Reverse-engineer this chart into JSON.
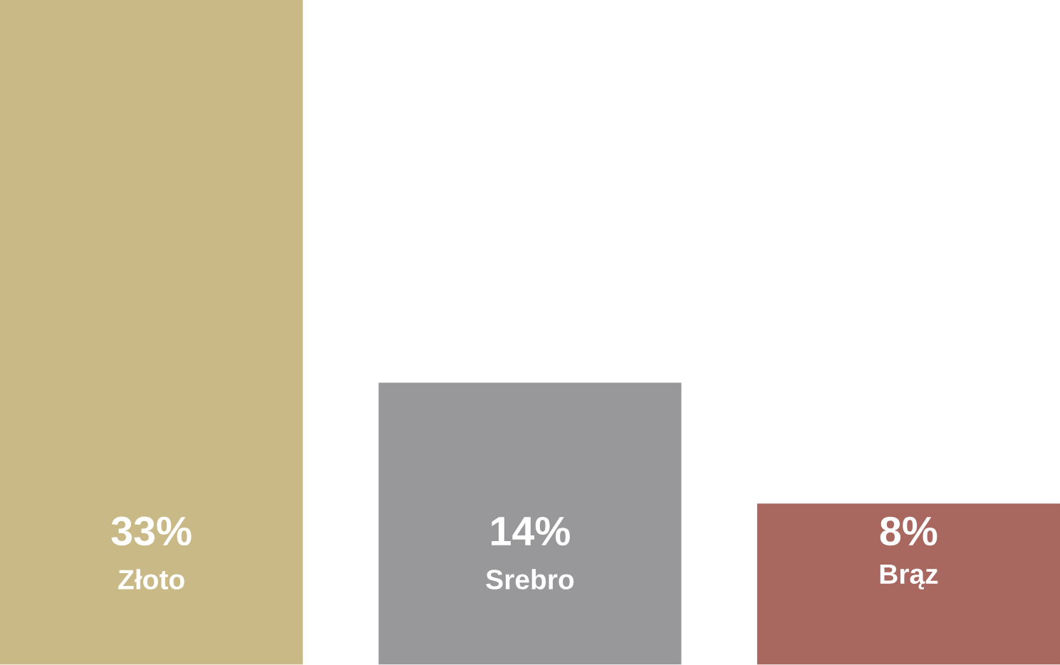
{
  "chart_data": {
    "type": "bar",
    "categories": [
      "Złoto",
      "Srebro",
      "Brąz"
    ],
    "values": [
      33,
      14,
      8
    ],
    "value_labels": [
      "33%",
      "14%",
      "8%"
    ],
    "colors": [
      "#c9b987",
      "#98979a",
      "#a8675f"
    ]
  }
}
